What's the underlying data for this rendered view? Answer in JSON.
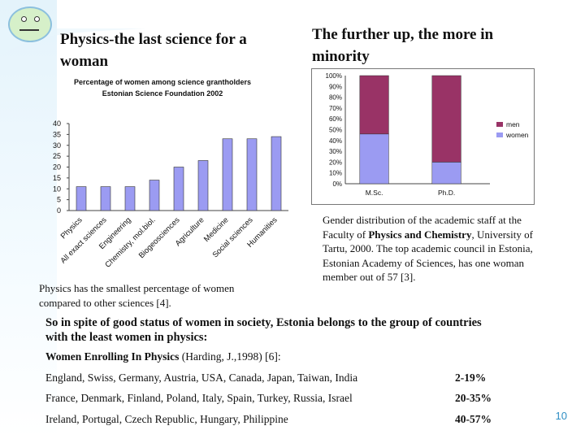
{
  "slide": {
    "left_title": "Physics-the last science for a woman",
    "right_title": "The further up, the more in minority",
    "left_note": "Physics has the smallest percentage of women compared to other sciences [4].",
    "right_note": {
      "part1": "Gender distribution of the academic staff at the Faculty of ",
      "part2_bold": "Physics and Chemistry",
      "part3": ", University of Tartu, 2000. The top academic council in Estonia, Estonian Academy of Sciences,  has one woman member out of 57 [3]."
    },
    "summary": "So in spite of good status of women in society, Estonia belongs to the group of countries with the least women in physics:",
    "enrolling": {
      "bold": "Women Enrolling In Physics",
      "rest": " (Harding, J.,1998) [6]:"
    },
    "rows": [
      {
        "countries": "England, Swiss, Germany, Austria, USA, Canada, Japan, Taiwan, India",
        "range": "2-19%"
      },
      {
        "countries": "France, Denmark, Finland, Poland, Italy, Spain, Turkey, Russia, Israel",
        "range": "20-35%"
      },
      {
        "countries": "Ireland, Portugal, Czech Republic, Hungary, Philippine",
        "range": "40-57%"
      }
    ],
    "page_number": "10"
  },
  "chart_data": [
    {
      "type": "bar",
      "title": "Percentage of women among science grantholders",
      "subtitle": "Estonian Science Foundation 2002",
      "categories": [
        "Physics",
        "All exact sciences",
        "Engineering",
        "Chemistry, mol.biol.",
        "Biogeosciences",
        "Agriculture",
        "Medicine",
        "Social sciences",
        "Humanities"
      ],
      "values": [
        11,
        11,
        11,
        14,
        20,
        23,
        33,
        33,
        34
      ],
      "ylim": [
        0,
        40
      ],
      "yticks": [
        "0",
        "5",
        "10",
        "15",
        "20",
        "25",
        "30",
        "35",
        "40"
      ],
      "color": "#9b9bf2"
    },
    {
      "type": "bar",
      "stacked": true,
      "categories": [
        "M.Sc.",
        "Ph.D."
      ],
      "series": [
        {
          "name": "women",
          "values": [
            46,
            20
          ],
          "color": "#9b9bf2"
        },
        {
          "name": "men",
          "values": [
            54,
            80
          ],
          "color": "#993366"
        }
      ],
      "ylim": [
        0,
        100
      ],
      "yticks": [
        "0%",
        "10%",
        "20%",
        "30%",
        "40%",
        "50%",
        "60%",
        "70%",
        "80%",
        "90%",
        "100%"
      ],
      "legend": [
        "men",
        "women"
      ],
      "legend_position": "right"
    }
  ]
}
